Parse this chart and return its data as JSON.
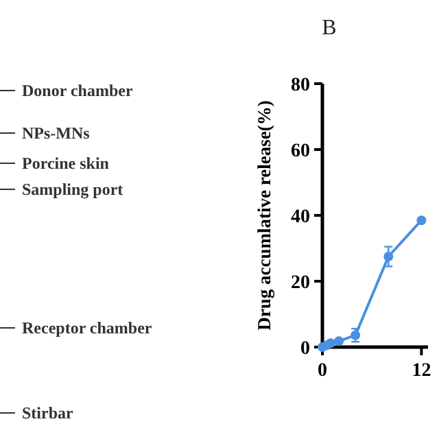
{
  "chart_data": [
    {
      "type": "other",
      "annotations": [
        "Donor chamber",
        "NPs-MNs",
        "Porcine skin",
        "Sampling port",
        "Receptor chamber",
        "Stirbar"
      ]
    },
    {
      "type": "line",
      "title": "B",
      "ylabel": "Drug accumlative release(%)",
      "xlim": [
        0,
        12.8
      ],
      "xticks": [
        0,
        12
      ],
      "ylim": [
        0,
        80
      ],
      "yticks": [
        0,
        20,
        40,
        60,
        80
      ],
      "grid": false,
      "marker": "circle",
      "line_style": "solid",
      "series": [
        {
          "color": "#4a90e2",
          "x": [
            0,
            0.5,
            1,
            2,
            4,
            8,
            12
          ],
          "values": [
            0,
            0.5,
            1.2,
            1.8,
            3.6,
            27.5,
            38.5
          ],
          "errors": [
            null,
            null,
            0.5,
            0.6,
            2,
            3,
            null
          ]
        }
      ]
    }
  ]
}
